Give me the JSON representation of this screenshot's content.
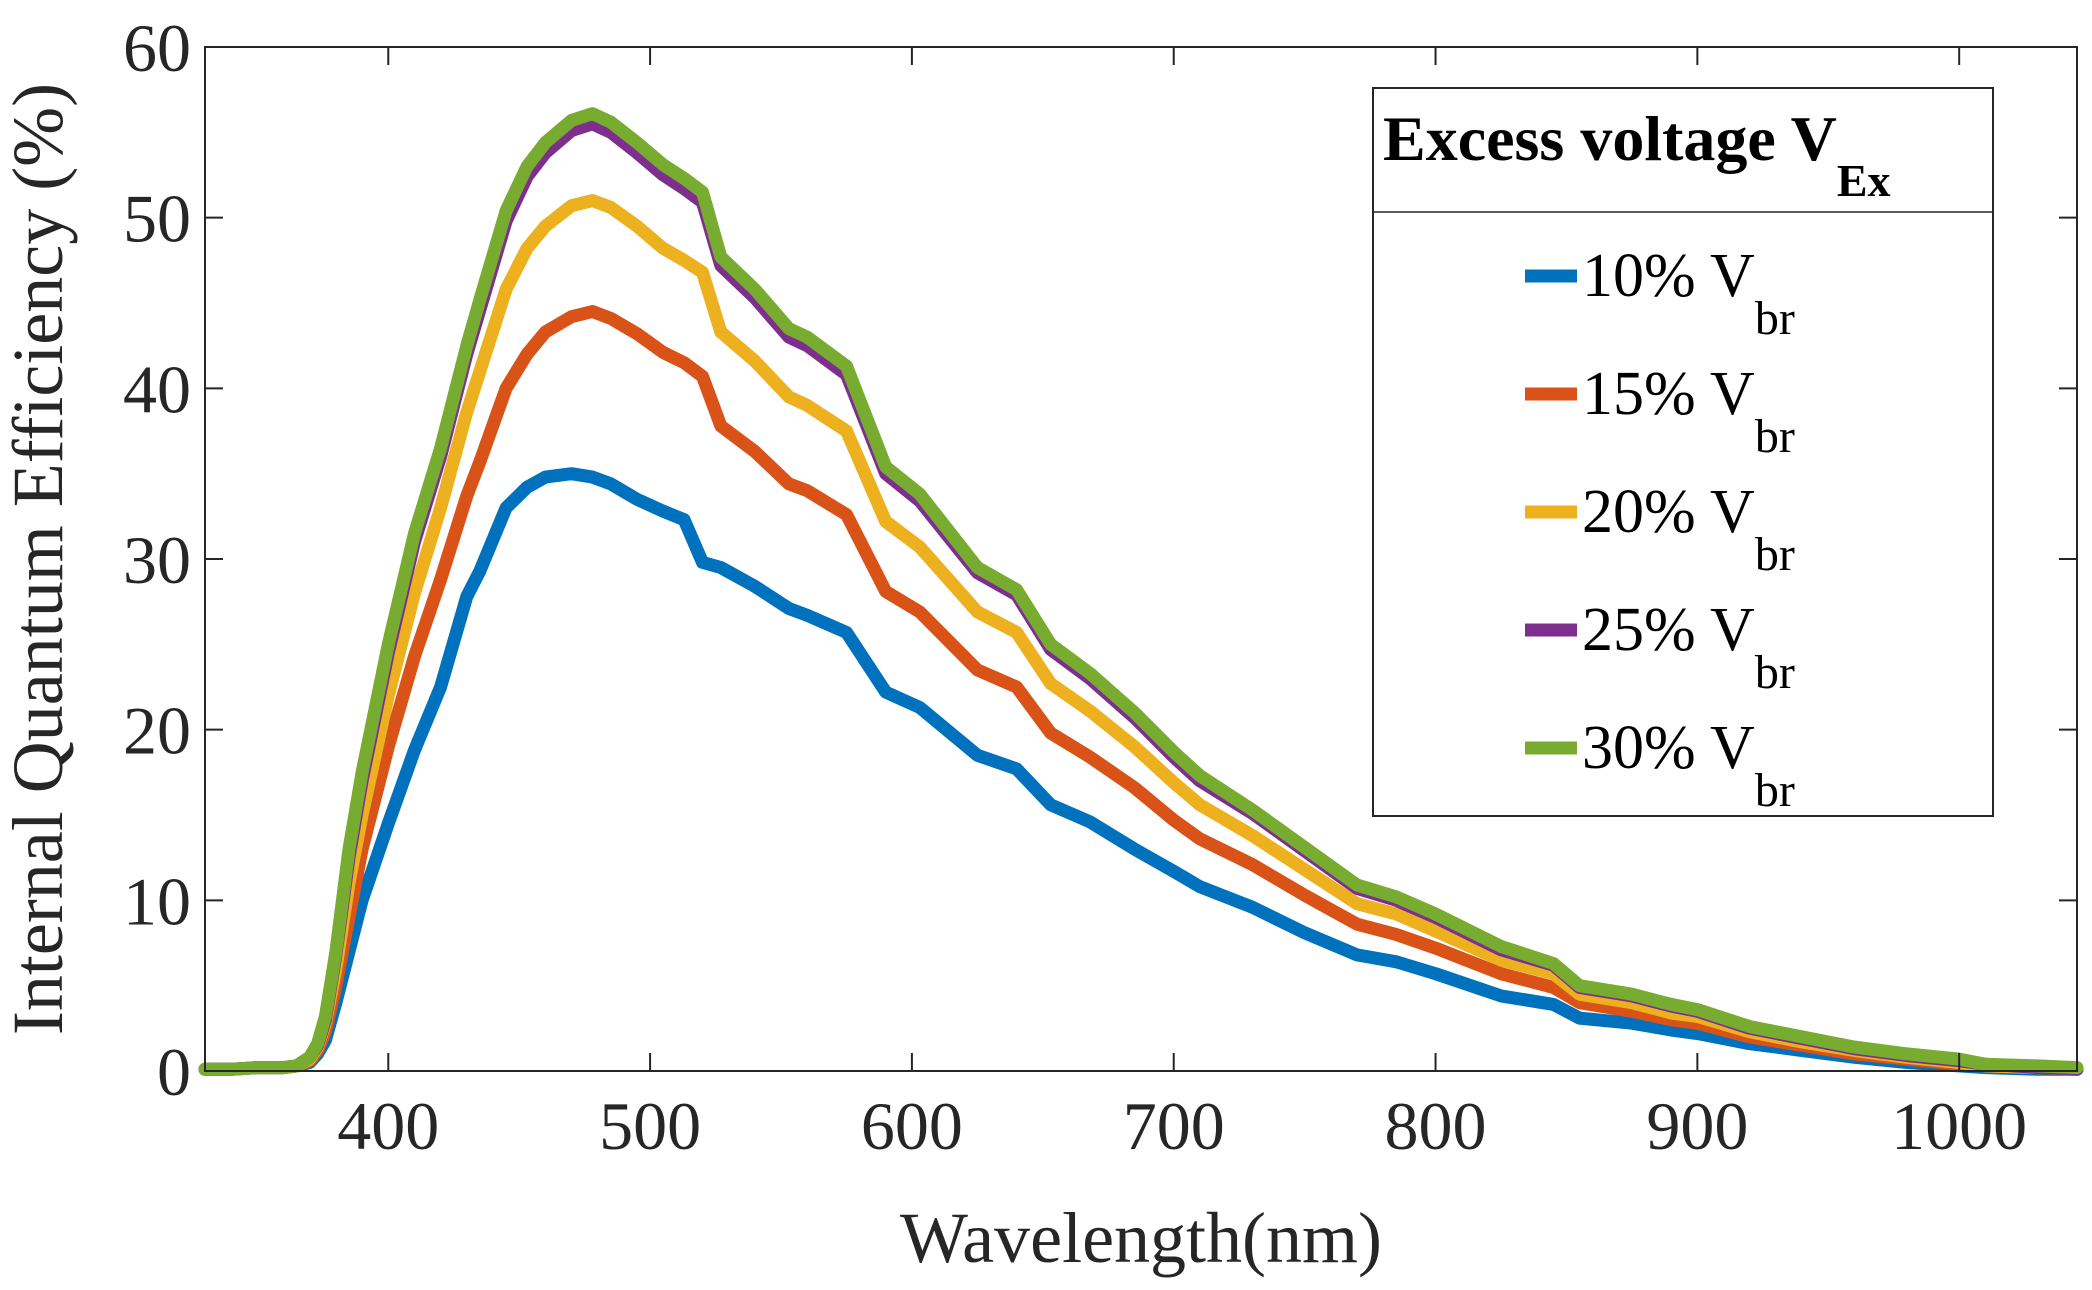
{
  "chart_data": {
    "type": "line",
    "xlabel": "Wavelength(nm)",
    "ylabel": "Internal Quantum Efficiency (%)",
    "xlim": [
      330,
      1045
    ],
    "ylim": [
      0,
      60
    ],
    "xticks": [
      400,
      500,
      600,
      700,
      800,
      900,
      1000
    ],
    "yticks": [
      0,
      10,
      20,
      30,
      40,
      50,
      60
    ],
    "xtick_labels": [
      "400",
      "500",
      "600",
      "700",
      "800",
      "900",
      "1000"
    ],
    "ytick_labels": [
      "0",
      "10",
      "20",
      "30",
      "40",
      "50",
      "60"
    ],
    "grid": false,
    "legend": {
      "title_main": "Excess voltage V",
      "title_sub": "Ex",
      "placement": "top-right",
      "entry_sub": "br"
    },
    "x": [
      330,
      340,
      350,
      360,
      365,
      370,
      373,
      376,
      380,
      385,
      390,
      400,
      410,
      420,
      430,
      435,
      445,
      453,
      460,
      470,
      478,
      485,
      495,
      505,
      513,
      520,
      527,
      540,
      553,
      560,
      575,
      590,
      603,
      625,
      640,
      653,
      668,
      685,
      700,
      710,
      730,
      750,
      770,
      785,
      800,
      825,
      845,
      855,
      875,
      890,
      900,
      920,
      940,
      960,
      980,
      1000,
      1010,
      1030,
      1045
    ],
    "series": [
      {
        "name": "10% V",
        "color": "#0072BD",
        "values": [
          0.1,
          0.1,
          0.2,
          0.2,
          0.3,
          0.5,
          1.0,
          1.8,
          4.0,
          7.0,
          10.0,
          14.5,
          18.8,
          22.5,
          27.8,
          29.3,
          33.0,
          34.2,
          34.8,
          35.0,
          34.8,
          34.4,
          33.5,
          32.8,
          32.3,
          29.8,
          29.5,
          28.4,
          27.1,
          26.7,
          25.7,
          22.2,
          21.3,
          18.5,
          17.7,
          15.6,
          14.6,
          13.0,
          11.7,
          10.8,
          9.6,
          8.1,
          6.8,
          6.4,
          5.7,
          4.4,
          3.9,
          3.1,
          2.8,
          2.4,
          2.2,
          1.6,
          1.2,
          0.8,
          0.5,
          0.3,
          0.2,
          0.1,
          0.1
        ]
      },
      {
        "name": "15% V",
        "color": "#D95319",
        "values": [
          0.1,
          0.1,
          0.2,
          0.2,
          0.3,
          0.6,
          1.2,
          2.3,
          5.0,
          9.0,
          13.0,
          19.0,
          24.3,
          28.8,
          33.7,
          35.7,
          40.0,
          42.0,
          43.3,
          44.2,
          44.5,
          44.1,
          43.2,
          42.1,
          41.5,
          40.7,
          37.8,
          36.3,
          34.4,
          34.0,
          32.6,
          28.1,
          26.9,
          23.5,
          22.5,
          19.8,
          18.4,
          16.6,
          14.7,
          13.6,
          12.1,
          10.3,
          8.6,
          8.0,
          7.2,
          5.7,
          4.9,
          4.0,
          3.5,
          3.0,
          2.8,
          2.0,
          1.5,
          1.0,
          0.7,
          0.4,
          0.3,
          0.2,
          0.1
        ]
      },
      {
        "name": "20% V",
        "color": "#EDB120",
        "values": [
          0.1,
          0.1,
          0.2,
          0.2,
          0.3,
          0.7,
          1.4,
          2.8,
          6.0,
          11.0,
          15.0,
          22.0,
          28.0,
          33.0,
          38.6,
          41.0,
          45.8,
          48.2,
          49.5,
          50.7,
          51.0,
          50.6,
          49.5,
          48.2,
          47.5,
          46.8,
          43.3,
          41.6,
          39.5,
          39.0,
          37.5,
          32.2,
          30.7,
          26.9,
          25.7,
          22.7,
          21.1,
          19.0,
          16.9,
          15.6,
          13.8,
          11.8,
          9.8,
          9.2,
          8.2,
          6.5,
          5.7,
          4.5,
          4.0,
          3.4,
          3.2,
          2.3,
          1.7,
          1.2,
          0.8,
          0.5,
          0.3,
          0.2,
          0.1
        ]
      },
      {
        "name": "25% V",
        "color": "#7E2F8E",
        "values": [
          0.1,
          0.1,
          0.2,
          0.2,
          0.3,
          0.8,
          1.5,
          3.0,
          6.8,
          12.5,
          17.0,
          24.5,
          31.0,
          36.0,
          42.0,
          44.6,
          49.8,
          52.4,
          53.8,
          55.1,
          55.5,
          55.0,
          53.8,
          52.5,
          51.7,
          50.9,
          47.2,
          45.3,
          43.0,
          42.5,
          40.8,
          35.0,
          33.4,
          29.2,
          27.9,
          24.7,
          23.0,
          20.7,
          18.4,
          17.0,
          15.1,
          12.9,
          10.7,
          10.0,
          9.0,
          7.1,
          6.2,
          4.9,
          4.4,
          3.8,
          3.5,
          2.5,
          1.9,
          1.3,
          0.9,
          0.6,
          0.4,
          0.2,
          0.1
        ]
      },
      {
        "name": "30% V",
        "color": "#77AC30",
        "values": [
          0.1,
          0.1,
          0.2,
          0.2,
          0.3,
          0.8,
          1.6,
          3.2,
          7.0,
          13.0,
          17.5,
          25.0,
          31.5,
          36.5,
          42.5,
          45.2,
          50.4,
          53.0,
          54.4,
          55.7,
          56.1,
          55.6,
          54.4,
          53.1,
          52.3,
          51.5,
          47.7,
          45.8,
          43.5,
          43.0,
          41.3,
          35.4,
          33.8,
          29.5,
          28.2,
          25.0,
          23.3,
          21.0,
          18.7,
          17.3,
          15.3,
          13.1,
          10.9,
          10.2,
          9.2,
          7.3,
          6.3,
          5.0,
          4.5,
          3.9,
          3.6,
          2.6,
          2.0,
          1.4,
          1.0,
          0.7,
          0.4,
          0.3,
          0.2
        ]
      }
    ]
  }
}
